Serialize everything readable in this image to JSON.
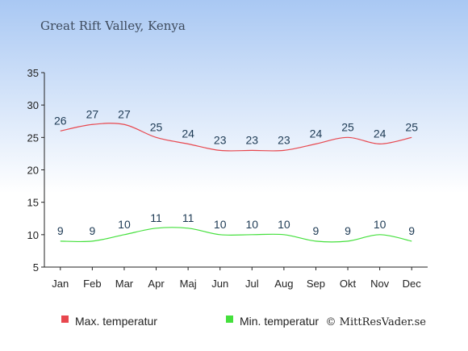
{
  "chart_data": {
    "type": "line",
    "title": "Great Rift Valley, Kenya",
    "categories": [
      "Jan",
      "Feb",
      "Mar",
      "Apr",
      "Maj",
      "Jun",
      "Jul",
      "Aug",
      "Sep",
      "Okt",
      "Nov",
      "Dec"
    ],
    "ylim": [
      5,
      35
    ],
    "yticks": [
      5,
      10,
      15,
      20,
      25,
      30,
      35
    ],
    "grid": false,
    "legend_position": "bottom-left",
    "series": [
      {
        "name": "Max. temperatur",
        "color": "#e8474e",
        "values": [
          26,
          27,
          27,
          25,
          24,
          23,
          23,
          23,
          24,
          25,
          24,
          25
        ]
      },
      {
        "name": "Min. temperatur",
        "color": "#44e03c",
        "values": [
          9,
          9,
          10,
          11,
          11,
          10,
          10,
          10,
          9,
          9,
          10,
          9
        ]
      }
    ]
  },
  "credit": "© MittResVader.se",
  "colors": {
    "background_top": "#a9c8f3",
    "background_bottom": "#ffffff"
  }
}
